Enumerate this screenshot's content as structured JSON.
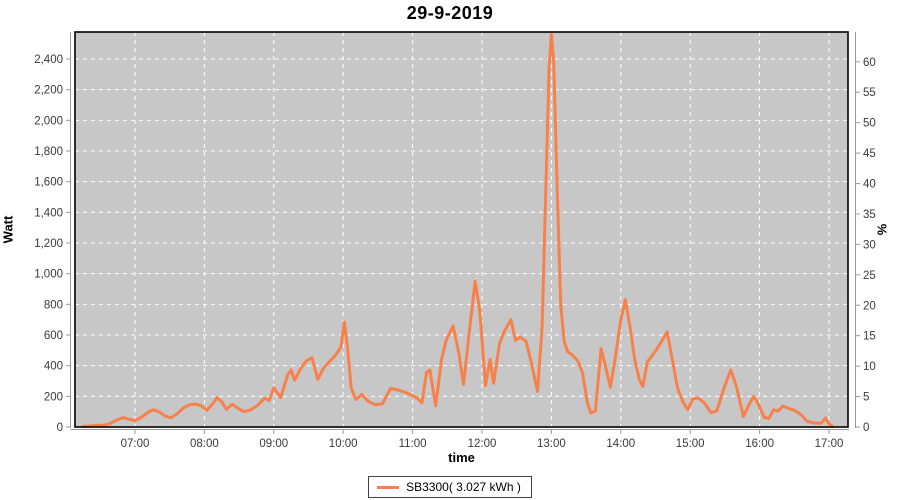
{
  "chart_data": {
    "type": "line",
    "title": "29-9-2019",
    "xlabel": "time",
    "ylabel_left": "Watt",
    "ylabel_right": "%",
    "x_tick_labels": [
      "07:00",
      "08:00",
      "09:00",
      "10:00",
      "11:00",
      "12:00",
      "13:00",
      "14:00",
      "15:00",
      "16:00",
      "17:00"
    ],
    "y_left_tick_values": [
      0,
      200,
      400,
      600,
      800,
      1000,
      1200,
      1400,
      1600,
      1800,
      2000,
      2200,
      2400
    ],
    "y_left_tick_labels": [
      "0",
      "200",
      "400",
      "600",
      "800",
      "1,000",
      "1,200",
      "1,400",
      "1,600",
      "1,800",
      "2,000",
      "2,200",
      "2,400"
    ],
    "y_right_tick_values": [
      0,
      5,
      10,
      15,
      20,
      25,
      30,
      35,
      40,
      45,
      50,
      55,
      60
    ],
    "y_right_tick_labels": [
      "0",
      "5",
      "10",
      "15",
      "20",
      "25",
      "30",
      "35",
      "40",
      "45",
      "50",
      "55",
      "60"
    ],
    "ylim_left": [
      0,
      2576
    ],
    "ylim_right": [
      0,
      64.5
    ],
    "x_range": [
      "06:08",
      "17:16"
    ],
    "grid": {
      "style": "dashed",
      "color": "#ffffff",
      "background": "#c7c7c7"
    },
    "legend": {
      "position": "bottom-center",
      "label": "SB3300( 3.027 kWh )"
    },
    "colors": {
      "series": "#f8814b",
      "plot_border": "#000000",
      "axis": "#9a9a9a",
      "tick_text": "#3a3a3a"
    },
    "series": [
      {
        "name": "SB3300",
        "color": "#f8814b",
        "points": [
          [
            "06:15",
            3
          ],
          [
            "06:20",
            6
          ],
          [
            "06:26",
            10
          ],
          [
            "06:32",
            12
          ],
          [
            "06:38",
            20
          ],
          [
            "06:44",
            45
          ],
          [
            "06:50",
            62
          ],
          [
            "06:55",
            50
          ],
          [
            "07:00",
            42
          ],
          [
            "07:06",
            65
          ],
          [
            "07:11",
            95
          ],
          [
            "07:16",
            112
          ],
          [
            "07:21",
            98
          ],
          [
            "07:26",
            72
          ],
          [
            "07:31",
            60
          ],
          [
            "07:37",
            90
          ],
          [
            "07:42",
            125
          ],
          [
            "07:47",
            145
          ],
          [
            "07:52",
            150
          ],
          [
            "07:57",
            140
          ],
          [
            "08:02",
            108
          ],
          [
            "08:07",
            150
          ],
          [
            "08:11",
            192
          ],
          [
            "08:15",
            165
          ],
          [
            "08:19",
            115
          ],
          [
            "08:24",
            148
          ],
          [
            "08:29",
            122
          ],
          [
            "08:34",
            100
          ],
          [
            "08:40",
            112
          ],
          [
            "08:46",
            140
          ],
          [
            "08:52",
            188
          ],
          [
            "08:56",
            172
          ],
          [
            "09:00",
            255
          ],
          [
            "09:06",
            192
          ],
          [
            "09:12",
            340
          ],
          [
            "09:15",
            372
          ],
          [
            "09:18",
            305
          ],
          [
            "09:23",
            378
          ],
          [
            "09:28",
            430
          ],
          [
            "09:33",
            452
          ],
          [
            "09:38",
            310
          ],
          [
            "09:43",
            385
          ],
          [
            "09:48",
            425
          ],
          [
            "09:53",
            465
          ],
          [
            "09:58",
            520
          ],
          [
            "10:01",
            685
          ],
          [
            "10:04",
            500
          ],
          [
            "10:07",
            250
          ],
          [
            "10:11",
            180
          ],
          [
            "10:16",
            212
          ],
          [
            "10:22",
            165
          ],
          [
            "10:28",
            145
          ],
          [
            "10:34",
            152
          ],
          [
            "10:41",
            252
          ],
          [
            "10:47",
            242
          ],
          [
            "10:53",
            228
          ],
          [
            "10:59",
            208
          ],
          [
            "11:04",
            188
          ],
          [
            "11:08",
            158
          ],
          [
            "11:12",
            355
          ],
          [
            "11:15",
            372
          ],
          [
            "11:20",
            138
          ],
          [
            "11:25",
            440
          ],
          [
            "11:29",
            565
          ],
          [
            "11:35",
            660
          ],
          [
            "11:40",
            480
          ],
          [
            "11:44",
            278
          ],
          [
            "11:49",
            620
          ],
          [
            "11:54",
            950
          ],
          [
            "11:58",
            760
          ],
          [
            "12:03",
            270
          ],
          [
            "12:07",
            440
          ],
          [
            "12:10",
            285
          ],
          [
            "12:15",
            540
          ],
          [
            "12:19",
            620
          ],
          [
            "12:25",
            700
          ],
          [
            "12:29",
            565
          ],
          [
            "12:33",
            585
          ],
          [
            "12:38",
            560
          ],
          [
            "12:43",
            410
          ],
          [
            "12:48",
            232
          ],
          [
            "12:52",
            650
          ],
          [
            "12:55",
            1500
          ],
          [
            "12:58",
            2350
          ],
          [
            "13:00",
            2560
          ],
          [
            "13:02",
            2380
          ],
          [
            "13:05",
            1550
          ],
          [
            "13:08",
            800
          ],
          [
            "13:11",
            560
          ],
          [
            "13:14",
            492
          ],
          [
            "13:18",
            470
          ],
          [
            "13:23",
            430
          ],
          [
            "13:27",
            350
          ],
          [
            "13:31",
            160
          ],
          [
            "13:34",
            92
          ],
          [
            "13:38",
            105
          ],
          [
            "13:43",
            510
          ],
          [
            "13:46",
            420
          ],
          [
            "13:51",
            258
          ],
          [
            "13:55",
            440
          ],
          [
            "14:00",
            700
          ],
          [
            "14:04",
            830
          ],
          [
            "14:08",
            650
          ],
          [
            "14:12",
            440
          ],
          [
            "14:16",
            310
          ],
          [
            "14:19",
            265
          ],
          [
            "14:23",
            425
          ],
          [
            "14:28",
            475
          ],
          [
            "14:33",
            530
          ],
          [
            "14:40",
            620
          ],
          [
            "14:45",
            420
          ],
          [
            "14:49",
            255
          ],
          [
            "14:54",
            160
          ],
          [
            "14:58",
            112
          ],
          [
            "15:02",
            182
          ],
          [
            "15:07",
            190
          ],
          [
            "15:12",
            158
          ],
          [
            "15:18",
            95
          ],
          [
            "15:23",
            105
          ],
          [
            "15:29",
            248
          ],
          [
            "15:35",
            372
          ],
          [
            "15:40",
            262
          ],
          [
            "15:46",
            68
          ],
          [
            "15:51",
            148
          ],
          [
            "15:55",
            200
          ],
          [
            "15:59",
            148
          ],
          [
            "16:04",
            62
          ],
          [
            "16:08",
            56
          ],
          [
            "16:12",
            112
          ],
          [
            "16:16",
            104
          ],
          [
            "16:20",
            136
          ],
          [
            "16:25",
            122
          ],
          [
            "16:30",
            108
          ],
          [
            "16:36",
            80
          ],
          [
            "16:41",
            38
          ],
          [
            "16:47",
            26
          ],
          [
            "16:53",
            25
          ],
          [
            "16:57",
            58
          ],
          [
            "17:00",
            20
          ],
          [
            "17:03",
            4
          ]
        ]
      }
    ]
  }
}
